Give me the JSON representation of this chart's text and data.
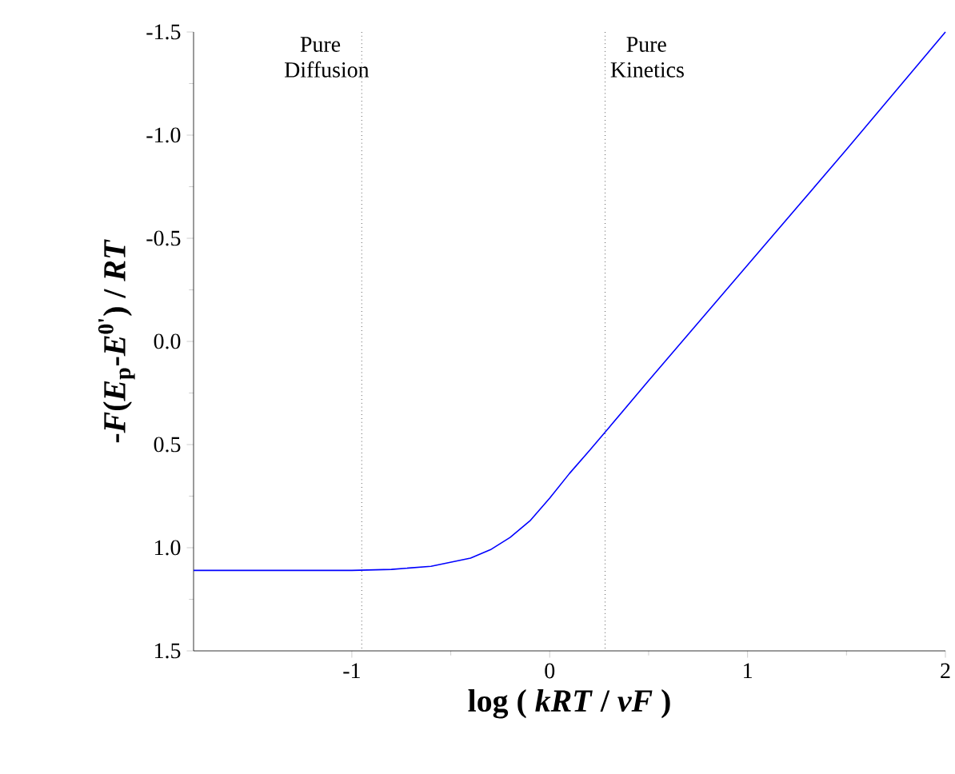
{
  "chart_data": {
    "type": "line",
    "xlabel": "log ( *kRT* / *vF* )",
    "ylabel": "-*F*(*E*$_{p}$-*E*$^{0'}$) / *RT*",
    "xlim": [
      -1.8,
      2
    ],
    "xticks": [
      -1,
      0,
      1,
      2
    ],
    "ylim": [
      1.5,
      -1.5
    ],
    "yticks": [
      {
        "value": -1.5,
        "label": "-1.5"
      },
      {
        "value": -1.0,
        "label": "-1.0"
      },
      {
        "value": -0.5,
        "label": "-0.5"
      },
      {
        "value": 0.0,
        "label": "0.0"
      },
      {
        "value": 0.5,
        "label": "0.5"
      },
      {
        "value": 1.0,
        "label": "1.0"
      },
      {
        "value": 1.5,
        "label": "1.5"
      }
    ],
    "grid": false,
    "series": [
      {
        "color": "#0000ff",
        "x": [
          -1.8,
          -1.4,
          -1.0,
          -0.8,
          -0.6,
          -0.4,
          -0.3,
          -0.2,
          -0.1,
          0,
          0.1,
          0.2,
          0.28,
          0.5,
          1.0,
          1.5,
          2.0
        ],
        "values": [
          1.11,
          1.11,
          1.11,
          1.105,
          1.09,
          1.05,
          1.01,
          0.95,
          0.87,
          0.76,
          0.64,
          0.53,
          0.44,
          0.19,
          -0.37,
          -0.93,
          -1.5
        ]
      }
    ],
    "ref_lines": [
      {
        "axis": "x",
        "value": -0.95,
        "label": "Pure Diffusion",
        "color": "#000000",
        "line_style": "dotted"
      },
      {
        "axis": "x",
        "value": 0.28,
        "label": "Pure Kinetics",
        "color": "#000000",
        "line_style": "dotted"
      }
    ]
  }
}
